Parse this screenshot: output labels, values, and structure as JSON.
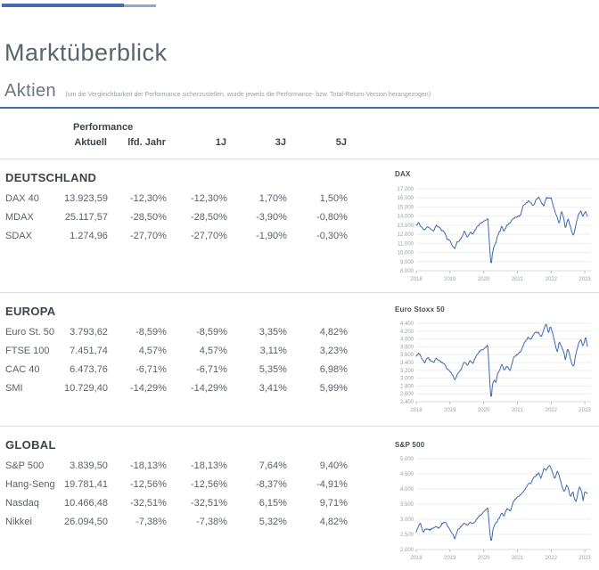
{
  "header": {
    "title": "Marktüberblick",
    "section_title": "Aktien",
    "section_note": "(um die Vergleichbarkeit der Performance sicherzustellen, wurde jeweils die Performance- bzw. Total-Return-Version herangezogen)",
    "accent_color": "#4a69b0",
    "top_bar_dark": "#4a68b0",
    "top_bar_light": "#90a5d4"
  },
  "table": {
    "group_header": "Performance",
    "columns": [
      "Aktuell",
      "lfd. Jahr",
      "1J",
      "3J",
      "5J"
    ]
  },
  "sections": [
    {
      "title": "DEUTSCHLAND",
      "rows": [
        {
          "name": "DAX 40",
          "aktuell": "13.923,59",
          "lfd_jahr": "-12,30%",
          "j1": "-12,30%",
          "j3": "1,70%",
          "j5": "1,50%"
        },
        {
          "name": "MDAX",
          "aktuell": "25.117,57",
          "lfd_jahr": "-28,50%",
          "j1": "-28,50%",
          "j3": "-3,90%",
          "j5": "-0,80%"
        },
        {
          "name": "SDAX",
          "aktuell": "1.274,96",
          "lfd_jahr": "-27,70%",
          "j1": "-27,70%",
          "j3": "-1,90%",
          "j5": "-0,30%"
        }
      ]
    },
    {
      "title": "EUROPA",
      "rows": [
        {
          "name": "Euro St. 50",
          "aktuell": "3.793,62",
          "lfd_jahr": "-8,59%",
          "j1": "-8,59%",
          "j3": "3,35%",
          "j5": "4,82%"
        },
        {
          "name": "FTSE 100",
          "aktuell": "7.451,74",
          "lfd_jahr": "4,57%",
          "j1": "4,57%",
          "j3": "3,11%",
          "j5": "3,23%"
        },
        {
          "name": "CAC 40",
          "aktuell": "6.473,76",
          "lfd_jahr": "-6,71%",
          "j1": "-6,71%",
          "j3": "5,35%",
          "j5": "6,98%"
        },
        {
          "name": "SMI",
          "aktuell": "10.729,40",
          "lfd_jahr": "-14,29%",
          "j1": "-14,29%",
          "j3": "3,41%",
          "j5": "5,99%"
        }
      ]
    },
    {
      "title": "GLOBAL",
      "rows": [
        {
          "name": "S&P 500",
          "aktuell": "3.839,50",
          "lfd_jahr": "-18,13%",
          "j1": "-18,13%",
          "j3": "7,64%",
          "j5": "9,40%"
        },
        {
          "name": "Hang-Seng",
          "aktuell": "19.781,41",
          "lfd_jahr": "-12,56%",
          "j1": "-12,56%",
          "j3": "-8,37%",
          "j5": "-4,91%"
        },
        {
          "name": "Nasdaq",
          "aktuell": "10.466,48",
          "lfd_jahr": "-32,51%",
          "j1": "-32,51%",
          "j3": "6,15%",
          "j5": "9,71%"
        },
        {
          "name": "Nikkei",
          "aktuell": "26.094,50",
          "lfd_jahr": "-7,38%",
          "j1": "-7,38%",
          "j3": "5,32%",
          "j5": "4,82%"
        }
      ]
    }
  ],
  "chart_data": [
    {
      "type": "line",
      "title": "DAX",
      "x_ticks": [
        "2018",
        "2019",
        "2020",
        "2021",
        "2022",
        "2023"
      ],
      "ylim": [
        8000,
        17000
      ],
      "y_ticks": [
        8000,
        9000,
        10000,
        11000,
        12000,
        13000,
        14000,
        15000,
        16000,
        17000
      ],
      "y_tick_labels": [
        "8.000",
        "9.000",
        "10.000",
        "11.000",
        "12.000",
        "13.000",
        "14.000",
        "15.000",
        "16.000",
        "17.000"
      ],
      "line_color": "#3d68b1",
      "grid": true,
      "series": [
        {
          "name": "DAX",
          "keypoints": [
            [
              0,
              12950
            ],
            [
              0.015,
              13300
            ],
            [
              0.03,
              12750
            ],
            [
              0.05,
              12400
            ],
            [
              0.065,
              12900
            ],
            [
              0.08,
              12600
            ],
            [
              0.1,
              12350
            ],
            [
              0.115,
              13000
            ],
            [
              0.13,
              12850
            ],
            [
              0.15,
              12450
            ],
            [
              0.165,
              12250
            ],
            [
              0.18,
              11500
            ],
            [
              0.2,
              11200
            ],
            [
              0.215,
              10600
            ],
            [
              0.225,
              10450
            ],
            [
              0.24,
              11200
            ],
            [
              0.26,
              11450
            ],
            [
              0.28,
              12300
            ],
            [
              0.3,
              11700
            ],
            [
              0.315,
              12250
            ],
            [
              0.33,
              12000
            ],
            [
              0.35,
              12650
            ],
            [
              0.37,
              13150
            ],
            [
              0.39,
              13300
            ],
            [
              0.405,
              13550
            ],
            [
              0.418,
              13750
            ],
            [
              0.428,
              11000
            ],
            [
              0.437,
              8450
            ],
            [
              0.445,
              10000
            ],
            [
              0.455,
              10700
            ],
            [
              0.465,
              11000
            ],
            [
              0.475,
              11900
            ],
            [
              0.49,
              12400
            ],
            [
              0.5,
              12900
            ],
            [
              0.512,
              12350
            ],
            [
              0.53,
              13000
            ],
            [
              0.55,
              13300
            ],
            [
              0.57,
              13750
            ],
            [
              0.59,
              13900
            ],
            [
              0.61,
              14100
            ],
            [
              0.625,
              15250
            ],
            [
              0.64,
              15400
            ],
            [
              0.655,
              15650
            ],
            [
              0.67,
              15450
            ],
            [
              0.685,
              15100
            ],
            [
              0.7,
              15850
            ],
            [
              0.715,
              16050
            ],
            [
              0.73,
              15500
            ],
            [
              0.745,
              15150
            ],
            [
              0.76,
              16050
            ],
            [
              0.775,
              15900
            ],
            [
              0.788,
              16000
            ],
            [
              0.8,
              15200
            ],
            [
              0.812,
              14450
            ],
            [
              0.825,
              13800
            ],
            [
              0.835,
              13100
            ],
            [
              0.848,
              14550
            ],
            [
              0.86,
              13950
            ],
            [
              0.872,
              12650
            ],
            [
              0.885,
              13750
            ],
            [
              0.895,
              13250
            ],
            [
              0.91,
              12150
            ],
            [
              0.92,
              11900
            ],
            [
              0.935,
              13300
            ],
            [
              0.95,
              14350
            ],
            [
              0.962,
              14550
            ],
            [
              0.972,
              13900
            ],
            [
              0.98,
              14300
            ],
            [
              0.99,
              14500
            ],
            [
              1,
              13950
            ]
          ]
        }
      ]
    },
    {
      "type": "line",
      "title": "Euro Stoxx 50",
      "x_ticks": [
        "2018",
        "2019",
        "2020",
        "2021",
        "2022",
        "2023"
      ],
      "ylim": [
        2400,
        4400
      ],
      "y_ticks": [
        2400,
        2600,
        2800,
        3000,
        3200,
        3400,
        3600,
        3800,
        4000,
        4200,
        4400
      ],
      "y_tick_labels": [
        "2.400",
        "2.600",
        "2.800",
        "3.000",
        "3.200",
        "3.400",
        "3.600",
        "3.800",
        "4.000",
        "4.200",
        "4.400"
      ],
      "line_color": "#3d68b1",
      "grid": true,
      "series": [
        {
          "name": "Euro Stoxx 50",
          "keypoints": [
            [
              0,
              3560
            ],
            [
              0.015,
              3650
            ],
            [
              0.03,
              3520
            ],
            [
              0.05,
              3400
            ],
            [
              0.065,
              3540
            ],
            [
              0.08,
              3460
            ],
            [
              0.1,
              3390
            ],
            [
              0.115,
              3500
            ],
            [
              0.13,
              3470
            ],
            [
              0.15,
              3400
            ],
            [
              0.165,
              3350
            ],
            [
              0.18,
              3250
            ],
            [
              0.2,
              3150
            ],
            [
              0.215,
              3050
            ],
            [
              0.225,
              2950
            ],
            [
              0.24,
              3100
            ],
            [
              0.26,
              3200
            ],
            [
              0.28,
              3420
            ],
            [
              0.3,
              3320
            ],
            [
              0.315,
              3450
            ],
            [
              0.33,
              3380
            ],
            [
              0.35,
              3550
            ],
            [
              0.37,
              3680
            ],
            [
              0.39,
              3740
            ],
            [
              0.405,
              3780
            ],
            [
              0.418,
              3850
            ],
            [
              0.428,
              3050
            ],
            [
              0.437,
              2400
            ],
            [
              0.445,
              2850
            ],
            [
              0.455,
              2950
            ],
            [
              0.465,
              2880
            ],
            [
              0.475,
              3120
            ],
            [
              0.49,
              3230
            ],
            [
              0.5,
              3380
            ],
            [
              0.512,
              3200
            ],
            [
              0.53,
              3300
            ],
            [
              0.55,
              3200
            ],
            [
              0.57,
              3550
            ],
            [
              0.59,
              3600
            ],
            [
              0.61,
              3680
            ],
            [
              0.625,
              3850
            ],
            [
              0.64,
              3950
            ],
            [
              0.655,
              4050
            ],
            [
              0.67,
              3980
            ],
            [
              0.685,
              4120
            ],
            [
              0.7,
              4180
            ],
            [
              0.715,
              4150
            ],
            [
              0.73,
              4050
            ],
            [
              0.745,
              4250
            ],
            [
              0.76,
              4390
            ],
            [
              0.772,
              4150
            ],
            [
              0.785,
              4330
            ],
            [
              0.8,
              4100
            ],
            [
              0.812,
              3850
            ],
            [
              0.825,
              3650
            ],
            [
              0.835,
              3950
            ],
            [
              0.848,
              3800
            ],
            [
              0.86,
              3700
            ],
            [
              0.872,
              3450
            ],
            [
              0.885,
              3780
            ],
            [
              0.895,
              3600
            ],
            [
              0.91,
              3350
            ],
            [
              0.92,
              3310
            ],
            [
              0.935,
              3650
            ],
            [
              0.95,
              3900
            ],
            [
              0.962,
              3980
            ],
            [
              0.972,
              3820
            ],
            [
              0.98,
              3900
            ],
            [
              0.99,
              4050
            ],
            [
              1,
              3800
            ]
          ]
        }
      ]
    },
    {
      "type": "line",
      "title": "S&P 500",
      "x_ticks": [
        "2018",
        "2019",
        "2020",
        "2021",
        "2022",
        "2023"
      ],
      "ylim": [
        2000,
        5000
      ],
      "y_ticks": [
        2000,
        2500,
        3000,
        3500,
        4000,
        4500,
        5000
      ],
      "y_tick_labels": [
        "2.000",
        "2.500",
        "3.000",
        "3.500",
        "4.000",
        "4.500",
        "5.000"
      ],
      "line_color": "#3d68b1",
      "grid": true,
      "series": [
        {
          "name": "S&P 500",
          "keypoints": [
            [
              0,
              2600
            ],
            [
              0.015,
              2780
            ],
            [
              0.025,
              2870
            ],
            [
              0.04,
              2590
            ],
            [
              0.06,
              2700
            ],
            [
              0.08,
              2640
            ],
            [
              0.1,
              2720
            ],
            [
              0.115,
              2780
            ],
            [
              0.13,
              2700
            ],
            [
              0.15,
              2850
            ],
            [
              0.17,
              2920
            ],
            [
              0.185,
              2750
            ],
            [
              0.2,
              2640
            ],
            [
              0.215,
              2480
            ],
            [
              0.225,
              2350
            ],
            [
              0.24,
              2620
            ],
            [
              0.26,
              2750
            ],
            [
              0.28,
              2870
            ],
            [
              0.3,
              2800
            ],
            [
              0.315,
              2920
            ],
            [
              0.33,
              2850
            ],
            [
              0.35,
              2980
            ],
            [
              0.37,
              3100
            ],
            [
              0.39,
              3230
            ],
            [
              0.405,
              3300
            ],
            [
              0.418,
              3380
            ],
            [
              0.428,
              2700
            ],
            [
              0.437,
              2230
            ],
            [
              0.448,
              2650
            ],
            [
              0.458,
              2820
            ],
            [
              0.468,
              2880
            ],
            [
              0.48,
              3000
            ],
            [
              0.49,
              3100
            ],
            [
              0.5,
              3230
            ],
            [
              0.512,
              3100
            ],
            [
              0.53,
              3350
            ],
            [
              0.55,
              3270
            ],
            [
              0.57,
              3620
            ],
            [
              0.59,
              3720
            ],
            [
              0.61,
              3820
            ],
            [
              0.625,
              3900
            ],
            [
              0.64,
              4020
            ],
            [
              0.655,
              4180
            ],
            [
              0.67,
              4200
            ],
            [
              0.685,
              4360
            ],
            [
              0.7,
              4450
            ],
            [
              0.715,
              4520
            ],
            [
              0.73,
              4350
            ],
            [
              0.745,
              4680
            ],
            [
              0.76,
              4600
            ],
            [
              0.775,
              4780
            ],
            [
              0.788,
              4680
            ],
            [
              0.8,
              4480
            ],
            [
              0.81,
              4350
            ],
            [
              0.822,
              4580
            ],
            [
              0.835,
              4450
            ],
            [
              0.85,
              4120
            ],
            [
              0.865,
              3900
            ],
            [
              0.878,
              4120
            ],
            [
              0.89,
              4000
            ],
            [
              0.902,
              3700
            ],
            [
              0.915,
              3950
            ],
            [
              0.925,
              3650
            ],
            [
              0.935,
              3580
            ],
            [
              0.945,
              3900
            ],
            [
              0.955,
              4080
            ],
            [
              0.965,
              3950
            ],
            [
              0.975,
              3600
            ],
            [
              0.985,
              3950
            ],
            [
              1,
              3840
            ]
          ]
        }
      ]
    }
  ]
}
